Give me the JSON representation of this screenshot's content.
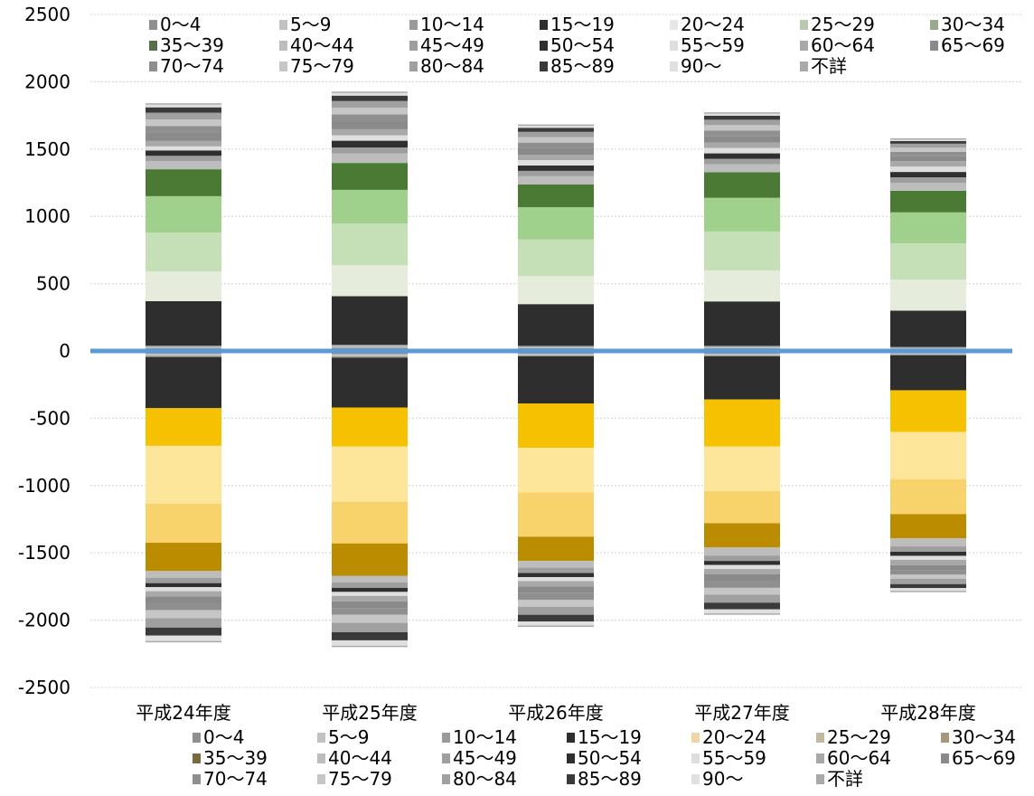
{
  "chart_data": {
    "type": "bar",
    "stacked": true,
    "categories": [
      "平成24年度",
      "平成25年度",
      "平成26年度",
      "平成27年度",
      "平成28年度"
    ],
    "ylim": [
      -2500,
      2500
    ],
    "yticks": [
      2500,
      2000,
      1500,
      1000,
      500,
      0,
      -500,
      -1000,
      -1500,
      -2000,
      -2500
    ],
    "grid": true,
    "zero_line_color": "#5b9bd5",
    "legend_position": "top and bottom",
    "age_groups": [
      "0～4",
      "5～9",
      "10～14",
      "15～19",
      "20～24",
      "25～29",
      "30～34",
      "35～39",
      "40～44",
      "45～49",
      "50～54",
      "55～59",
      "60～64",
      "65～69",
      "70～74",
      "75～79",
      "80～84",
      "85～89",
      "90～",
      "不詳"
    ],
    "series": [
      {
        "name": "0～4",
        "positive_values": [
          20,
          25,
          20,
          20,
          15
        ],
        "negative_values": [
          -20,
          -25,
          -20,
          -20,
          -15
        ]
      },
      {
        "name": "5～9",
        "positive_values": [
          10,
          12,
          10,
          10,
          8
        ],
        "negative_values": [
          -15,
          -15,
          -12,
          -12,
          -10
        ]
      },
      {
        "name": "10～14",
        "positive_values": [
          10,
          10,
          8,
          8,
          7
        ],
        "negative_values": [
          -10,
          -10,
          -8,
          -8,
          -7
        ]
      },
      {
        "name": "15～19",
        "positive_values": [
          330,
          360,
          310,
          330,
          270
        ],
        "negative_values": [
          -380,
          -370,
          -350,
          -320,
          -260
        ]
      },
      {
        "name": "20～24",
        "positive_values": [
          220,
          230,
          210,
          230,
          230
        ],
        "negative_values": [
          -280,
          -290,
          -330,
          -350,
          -310
        ]
      },
      {
        "name": "25～29",
        "positive_values": [
          290,
          310,
          270,
          290,
          270
        ],
        "negative_values": [
          -430,
          -410,
          -330,
          -330,
          -350
        ]
      },
      {
        "name": "30～34",
        "positive_values": [
          270,
          250,
          240,
          250,
          230
        ],
        "negative_values": [
          -290,
          -310,
          -330,
          -240,
          -260
        ]
      },
      {
        "name": "35～39",
        "positive_values": [
          200,
          200,
          170,
          190,
          160
        ],
        "negative_values": [
          -210,
          -240,
          -180,
          -180,
          -180
        ]
      },
      {
        "name": "40～44",
        "positive_values": [
          60,
          70,
          60,
          60,
          60
        ],
        "negative_values": [
          -50,
          -50,
          -50,
          -60,
          -60
        ]
      },
      {
        "name": "45～49",
        "positive_values": [
          40,
          45,
          40,
          40,
          40
        ],
        "negative_values": [
          -40,
          -40,
          -40,
          -40,
          -40
        ]
      },
      {
        "name": "50～54",
        "positive_values": [
          40,
          50,
          40,
          40,
          40
        ],
        "negative_values": [
          -30,
          -30,
          -30,
          -30,
          -30
        ]
      },
      {
        "name": "55～59",
        "positive_values": [
          30,
          40,
          40,
          40,
          40
        ],
        "negative_values": [
          -30,
          -30,
          -30,
          -30,
          -30
        ]
      },
      {
        "name": "60～64",
        "positive_values": [
          40,
          45,
          40,
          40,
          40
        ],
        "negative_values": [
          -40,
          -40,
          -40,
          -40,
          -40
        ]
      },
      {
        "name": "65～69",
        "positive_values": [
          60,
          60,
          50,
          50,
          40
        ],
        "negative_values": [
          -50,
          -50,
          -50,
          -50,
          -40
        ]
      },
      {
        "name": "70～74",
        "positive_values": [
          50,
          50,
          40,
          40,
          30
        ],
        "negative_values": [
          -50,
          -50,
          -50,
          -50,
          -30
        ]
      },
      {
        "name": "75～79",
        "positive_values": [
          50,
          50,
          40,
          40,
          30
        ],
        "negative_values": [
          -60,
          -60,
          -50,
          -50,
          -30
        ]
      },
      {
        "name": "80～84",
        "positive_values": [
          50,
          50,
          40,
          40,
          30
        ],
        "negative_values": [
          -70,
          -70,
          -60,
          -60,
          -40
        ]
      },
      {
        "name": "85～89",
        "positive_values": [
          40,
          40,
          30,
          30,
          20
        ],
        "negative_values": [
          -60,
          -60,
          -50,
          -50,
          -30
        ]
      },
      {
        "name": "90～",
        "positive_values": [
          20,
          20,
          15,
          15,
          10
        ],
        "negative_values": [
          -40,
          -40,
          -30,
          -30,
          -20
        ]
      },
      {
        "name": "不詳",
        "positive_values": [
          10,
          10,
          10,
          10,
          10
        ],
        "negative_values": [
          -10,
          -10,
          -10,
          -10,
          -10
        ]
      }
    ],
    "colors_positive": [
      "#8f8f8f",
      "#c2c2c2",
      "#9a9a9a",
      "#2e2e2e",
      "#e6ecdc",
      "#c5dfb7",
      "#9fd08c",
      "#4a7a33",
      "#bdbdbd",
      "#9e9e9e",
      "#2f2f2f",
      "#dedede",
      "#a8a8a8",
      "#8a8a8a",
      "#8f8f8f",
      "#c6c6c6",
      "#a0a0a0",
      "#3a3a3a",
      "#e0e0e0",
      "#a9a9a9"
    ],
    "colors_negative": [
      "#8f8f8f",
      "#c2c2c2",
      "#9a9a9a",
      "#2e2e2e",
      "#f6c100",
      "#fde69a",
      "#f8d26a",
      "#bb8c00",
      "#bdbdbd",
      "#9e9e9e",
      "#2f2f2f",
      "#dedede",
      "#a8a8a8",
      "#8a8a8a",
      "#8f8f8f",
      "#c6c6c6",
      "#a0a0a0",
      "#3a3a3a",
      "#e0e0e0",
      "#a9a9a9"
    ],
    "legend_top_colors": [
      "#8f8f8f",
      "#c2c2c2",
      "#9a9a9a",
      "#2e2e2e",
      "#e6e6e6",
      "#b9c9b0",
      "#98ac8c",
      "#557049",
      "#bdbdbd",
      "#9e9e9e",
      "#2f2f2f",
      "#dedede",
      "#a8a8a8",
      "#8a8a8a",
      "#8f8f8f",
      "#c6c6c6",
      "#a0a0a0",
      "#3a3a3a",
      "#e0e0e0",
      "#a9a9a9"
    ],
    "legend_bottom_colors": [
      "#8f8f8f",
      "#c2c2c2",
      "#9a9a9a",
      "#2e2e2e",
      "#ecd6a3",
      "#c2b7a0",
      "#a5987c",
      "#7a6a42",
      "#bdbdbd",
      "#9e9e9e",
      "#2f2f2f",
      "#dedede",
      "#a8a8a8",
      "#8a8a8a",
      "#8f8f8f",
      "#c6c6c6",
      "#a0a0a0",
      "#3a3a3a",
      "#e0e0e0",
      "#a9a9a9"
    ]
  }
}
